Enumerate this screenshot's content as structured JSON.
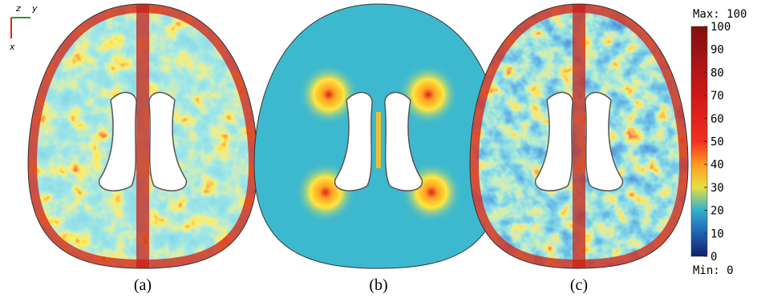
{
  "axes_indicator": {
    "z": "z",
    "y": "y",
    "x": "x"
  },
  "panels": [
    {
      "label": "(a)"
    },
    {
      "label": "(b)"
    },
    {
      "label": "(c)"
    }
  ],
  "colorbar": {
    "max_label": "Max: 100",
    "min_label": "Min: 0",
    "range": [
      0,
      100
    ],
    "ticks": [
      0,
      10,
      20,
      30,
      40,
      50,
      60,
      70,
      80,
      90,
      100
    ]
  }
}
